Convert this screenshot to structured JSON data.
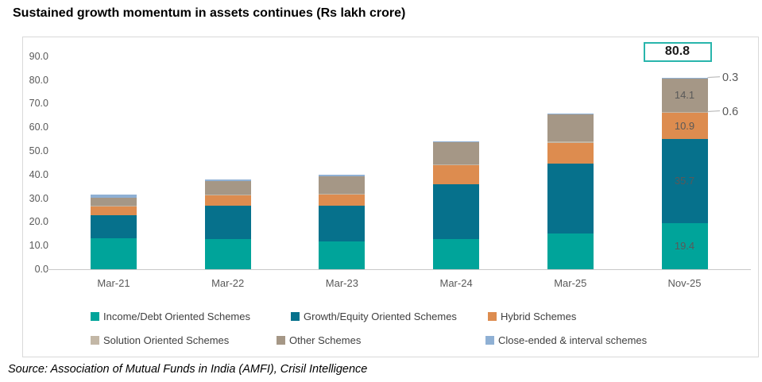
{
  "title": "Sustained growth momentum in assets continues (Rs lakh crore)",
  "source": "Source: Association of Mutual Funds in India (AMFI), Crisil Intelligence",
  "colors": {
    "axis_text": "#595959",
    "legend_text": "#404040",
    "frame_border": "#D9D9D9",
    "axis_line": "#C9C9C9",
    "leader_line": "#BFBFBF",
    "total_box_border": "#29B5AC"
  },
  "chart_data": {
    "type": "bar",
    "subtype": "stacked",
    "title": "Sustained growth momentum in assets continues (Rs lakh crore)",
    "unit": "Rs lakh crore",
    "categories": [
      "Mar-21",
      "Mar-22",
      "Mar-23",
      "Mar-24",
      "Mar-25",
      "Nov-25"
    ],
    "series": [
      {
        "name": "Income/Debt Oriented Schemes",
        "color": "#00A49A",
        "values": [
          13.2,
          12.8,
          11.8,
          12.6,
          15.2,
          19.4
        ]
      },
      {
        "name": "Growth/Equity Oriented Schemes",
        "color": "#06718C",
        "values": [
          9.7,
          13.9,
          15.2,
          23.3,
          29.4,
          35.7
        ]
      },
      {
        "name": "Hybrid Schemes",
        "color": "#DD8C4F",
        "values": [
          3.7,
          4.7,
          4.7,
          8.1,
          8.8,
          10.9
        ]
      },
      {
        "name": "Solution Oriented Schemes",
        "color": "#C3B7A6",
        "values": [
          0.3,
          0.3,
          0.3,
          0.4,
          0.5,
          0.6
        ]
      },
      {
        "name": "Other Schemes",
        "color": "#A59786",
        "values": [
          3.4,
          5.5,
          7.3,
          9.2,
          11.6,
          14.1
        ]
      },
      {
        "name": "Close-ended & interval schemes",
        "color": "#8FB0D4",
        "values": [
          1.1,
          0.7,
          0.6,
          0.4,
          0.2,
          0.3
        ]
      }
    ],
    "y_ticks": [
      "0.0",
      "10.0",
      "20.0",
      "30.0",
      "40.0",
      "50.0",
      "60.0",
      "70.0",
      "80.0",
      "90.0"
    ],
    "ylim": [
      0,
      90
    ],
    "grid": false,
    "legend_position": "bottom",
    "last_bar_segment_labels": {
      "Income/Debt Oriented Schemes": "19.4",
      "Growth/Equity Oriented Schemes": "35.7",
      "Hybrid Schemes": "10.9",
      "Other Schemes": "14.1"
    },
    "last_bar_callouts": [
      {
        "series": "Close-ended & interval schemes",
        "text": "0.3"
      },
      {
        "series": "Solution Oriented Schemes",
        "text": "0.6"
      }
    ],
    "total_label": {
      "category": "Nov-25",
      "text": "80.8"
    }
  }
}
